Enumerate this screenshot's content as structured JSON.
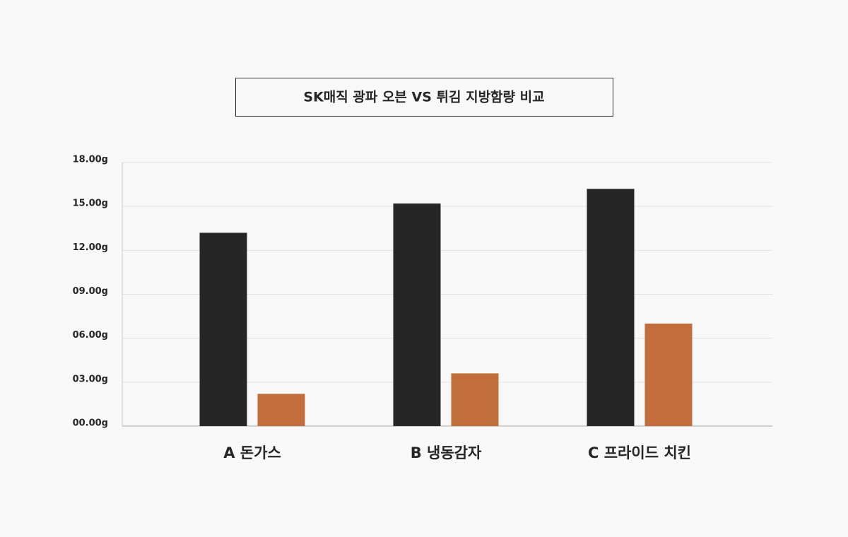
{
  "chart_data": {
    "type": "bar",
    "title": "SK매직 광파 오븐 VS 튀김 지방함량 비교",
    "categories": [
      "A 돈가스",
      "B 냉동감자",
      "C 프라이드 치킨"
    ],
    "series": [
      {
        "color": "#262626",
        "values": [
          13.2,
          15.2,
          16.2
        ]
      },
      {
        "color": "#c26d3c",
        "values": [
          2.2,
          3.6,
          7.0
        ]
      }
    ],
    "ylim": [
      0,
      18
    ],
    "yticks": [
      {
        "value": 0,
        "label": "00.00g"
      },
      {
        "value": 3,
        "label": "03.00g"
      },
      {
        "value": 6,
        "label": "06.00g"
      },
      {
        "value": 9,
        "label": "09.00g"
      },
      {
        "value": 12,
        "label": "12.00g"
      },
      {
        "value": 15,
        "label": "15.00g"
      },
      {
        "value": 18,
        "label": "18.00g"
      }
    ],
    "grid": true
  }
}
